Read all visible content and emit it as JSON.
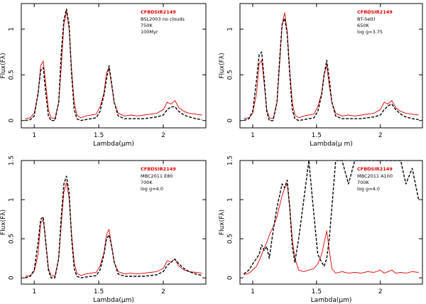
{
  "chart_data": [
    {
      "type": "line",
      "xlabel": "Lambda(μm)",
      "ylabel": "Flux(Fλ)",
      "xlim": [
        0.9,
        2.33
      ],
      "ylim": [
        -0.08,
        1.28
      ],
      "xticks": [
        1,
        1.5,
        2
      ],
      "xtick_labels": [
        "1",
        "1.5",
        "2"
      ],
      "yticks": [
        0,
        0.5,
        1
      ],
      "ytick_labels": [
        "0",
        "0.5",
        "1"
      ],
      "annotation_title": "CFBDSIR2149",
      "annotation_lines": [
        "BSL2003 no clouds",
        "750K",
        "100Myr"
      ],
      "series": [
        {
          "name": "CFBDSIR2149",
          "style": "solid",
          "color": "#e00000",
          "x": [
            0.93,
            0.97,
            1.0,
            1.03,
            1.05,
            1.07,
            1.09,
            1.11,
            1.13,
            1.16,
            1.19,
            1.21,
            1.23,
            1.25,
            1.27,
            1.29,
            1.31,
            1.33,
            1.36,
            1.4,
            1.44,
            1.48,
            1.51,
            1.54,
            1.56,
            1.58,
            1.6,
            1.62,
            1.65,
            1.7,
            1.75,
            1.8,
            1.85,
            1.9,
            1.95,
            2.0,
            2.03,
            2.06,
            2.09,
            2.12,
            2.16,
            2.2,
            2.25,
            2.3
          ],
          "y": [
            0.02,
            0.03,
            0.08,
            0.28,
            0.6,
            0.65,
            0.4,
            0.12,
            0.03,
            0.02,
            0.2,
            0.6,
            1.05,
            1.2,
            1.0,
            0.55,
            0.2,
            0.06,
            0.03,
            0.05,
            0.06,
            0.07,
            0.15,
            0.3,
            0.52,
            0.58,
            0.38,
            0.2,
            0.08,
            0.05,
            0.06,
            0.05,
            0.06,
            0.07,
            0.08,
            0.12,
            0.2,
            0.18,
            0.22,
            0.14,
            0.1,
            0.08,
            0.07,
            0.06
          ]
        },
        {
          "name": "BSL2003 no clouds model",
          "style": "dashed",
          "color": "#000000",
          "x": [
            0.93,
            0.97,
            1.0,
            1.03,
            1.05,
            1.07,
            1.09,
            1.11,
            1.13,
            1.16,
            1.19,
            1.21,
            1.23,
            1.25,
            1.27,
            1.29,
            1.31,
            1.33,
            1.36,
            1.4,
            1.44,
            1.48,
            1.51,
            1.54,
            1.56,
            1.58,
            1.6,
            1.62,
            1.65,
            1.7,
            1.75,
            1.8,
            1.85,
            1.9,
            1.95,
            2.0,
            2.03,
            2.06,
            2.09,
            2.12,
            2.16,
            2.2,
            2.25,
            2.3
          ],
          "y": [
            0.0,
            0.01,
            0.05,
            0.3,
            0.55,
            0.58,
            0.3,
            0.05,
            0.0,
            0.0,
            0.2,
            0.75,
            1.1,
            1.22,
            1.05,
            0.5,
            0.12,
            0.02,
            0.0,
            0.01,
            0.02,
            0.03,
            0.1,
            0.28,
            0.45,
            0.6,
            0.4,
            0.2,
            0.05,
            0.02,
            0.02,
            0.02,
            0.02,
            0.03,
            0.04,
            0.06,
            0.12,
            0.15,
            0.15,
            0.1,
            0.06,
            0.04,
            0.02,
            0.01
          ]
        }
      ]
    },
    {
      "type": "line",
      "xlabel": "Lambda(μ m)",
      "ylabel": "Flux(Fλ)",
      "xlim": [
        0.9,
        2.33
      ],
      "ylim": [
        -0.08,
        1.28
      ],
      "xticks": [
        1,
        1.5,
        2
      ],
      "xtick_labels": [
        "1",
        "1.5",
        "2"
      ],
      "yticks": [
        0,
        0.5,
        1
      ],
      "ytick_labels": [
        "0",
        "0.5",
        "1"
      ],
      "annotation_title": "CFBDSIR2149",
      "annotation_lines": [
        "BT-Settl",
        "650K",
        "log g=3.75"
      ],
      "series": [
        {
          "name": "CFBDSIR2149",
          "style": "solid",
          "color": "#e00000",
          "x": [
            0.93,
            0.97,
            1.0,
            1.03,
            1.05,
            1.07,
            1.09,
            1.11,
            1.13,
            1.16,
            1.19,
            1.21,
            1.23,
            1.25,
            1.27,
            1.29,
            1.31,
            1.33,
            1.36,
            1.4,
            1.44,
            1.48,
            1.51,
            1.54,
            1.56,
            1.58,
            1.6,
            1.62,
            1.65,
            1.7,
            1.75,
            1.8,
            1.85,
            1.9,
            1.95,
            2.0,
            2.03,
            2.06,
            2.09,
            2.12,
            2.16,
            2.2,
            2.25,
            2.3
          ],
          "y": [
            0.02,
            0.03,
            0.08,
            0.3,
            0.62,
            0.66,
            0.4,
            0.12,
            0.03,
            0.02,
            0.2,
            0.6,
            1.05,
            1.18,
            0.98,
            0.55,
            0.2,
            0.06,
            0.03,
            0.05,
            0.06,
            0.07,
            0.15,
            0.3,
            0.52,
            0.6,
            0.38,
            0.2,
            0.08,
            0.05,
            0.06,
            0.05,
            0.06,
            0.07,
            0.08,
            0.12,
            0.2,
            0.18,
            0.22,
            0.14,
            0.1,
            0.08,
            0.07,
            0.06
          ]
        },
        {
          "name": "BT-Settl model",
          "style": "dashed",
          "color": "#000000",
          "x": [
            0.93,
            0.97,
            1.0,
            1.03,
            1.05,
            1.07,
            1.09,
            1.11,
            1.13,
            1.16,
            1.19,
            1.21,
            1.23,
            1.25,
            1.27,
            1.29,
            1.31,
            1.33,
            1.36,
            1.4,
            1.44,
            1.48,
            1.51,
            1.54,
            1.56,
            1.58,
            1.6,
            1.62,
            1.65,
            1.7,
            1.75,
            1.8,
            1.85,
            1.9,
            1.95,
            2.0,
            2.03,
            2.06,
            2.09,
            2.12,
            2.16,
            2.2,
            2.25,
            2.3
          ],
          "y": [
            0.0,
            0.02,
            0.1,
            0.45,
            0.72,
            0.75,
            0.45,
            0.1,
            0.0,
            0.0,
            0.2,
            0.65,
            1.05,
            1.12,
            0.95,
            0.5,
            0.12,
            0.02,
            0.0,
            0.01,
            0.02,
            0.03,
            0.1,
            0.28,
            0.5,
            0.66,
            0.45,
            0.2,
            0.05,
            0.02,
            0.02,
            0.02,
            0.02,
            0.03,
            0.04,
            0.06,
            0.12,
            0.16,
            0.18,
            0.12,
            0.07,
            0.04,
            0.02,
            0.01
          ]
        }
      ]
    },
    {
      "type": "line",
      "xlabel": "Lambda(μm)",
      "ylabel": "Flux(Fλ)",
      "xlim": [
        0.9,
        2.33
      ],
      "ylim": [
        -0.08,
        1.5
      ],
      "xticks": [
        1,
        1.5,
        2
      ],
      "xtick_labels": [
        "1",
        "1.5",
        "2"
      ],
      "yticks": [
        0,
        0.5,
        1,
        1.5
      ],
      "ytick_labels": [
        "0",
        "0.5",
        "1",
        "1.5"
      ],
      "annotation_title": "CFBDSIR2149",
      "annotation_lines": [
        "MBC2011 E80",
        "700K",
        "log g=4.0"
      ],
      "series": [
        {
          "name": "CFBDSIR2149",
          "style": "solid",
          "color": "#e00000",
          "x": [
            0.93,
            0.97,
            1.0,
            1.03,
            1.05,
            1.07,
            1.09,
            1.11,
            1.13,
            1.16,
            1.19,
            1.21,
            1.23,
            1.25,
            1.27,
            1.29,
            1.31,
            1.33,
            1.36,
            1.4,
            1.44,
            1.48,
            1.51,
            1.54,
            1.56,
            1.58,
            1.6,
            1.62,
            1.65,
            1.7,
            1.75,
            1.8,
            1.85,
            1.9,
            1.95,
            2.0,
            2.03,
            2.06,
            2.09,
            2.12,
            2.16,
            2.2,
            2.25,
            2.3
          ],
          "y": [
            0.02,
            0.03,
            0.08,
            0.3,
            0.7,
            0.75,
            0.45,
            0.12,
            0.03,
            0.02,
            0.25,
            0.7,
            1.1,
            1.22,
            1.02,
            0.55,
            0.2,
            0.06,
            0.03,
            0.05,
            0.06,
            0.07,
            0.15,
            0.32,
            0.55,
            0.62,
            0.4,
            0.2,
            0.08,
            0.05,
            0.06,
            0.05,
            0.06,
            0.07,
            0.08,
            0.12,
            0.22,
            0.2,
            0.24,
            0.15,
            0.1,
            0.08,
            0.07,
            0.06
          ]
        },
        {
          "name": "MBC2011 E80 model",
          "style": "dashed",
          "color": "#000000",
          "x": [
            0.93,
            0.97,
            1.0,
            1.03,
            1.05,
            1.07,
            1.09,
            1.11,
            1.13,
            1.16,
            1.19,
            1.21,
            1.23,
            1.25,
            1.27,
            1.29,
            1.31,
            1.33,
            1.36,
            1.4,
            1.44,
            1.48,
            1.51,
            1.54,
            1.56,
            1.58,
            1.6,
            1.62,
            1.65,
            1.7,
            1.75,
            1.8,
            1.85,
            1.9,
            1.95,
            2.0,
            2.03,
            2.06,
            2.09,
            2.12,
            2.16,
            2.2,
            2.25,
            2.3
          ],
          "y": [
            0.0,
            0.02,
            0.1,
            0.45,
            0.75,
            0.78,
            0.45,
            0.1,
            0.0,
            0.0,
            0.25,
            0.8,
            1.2,
            1.3,
            1.1,
            0.5,
            0.12,
            0.02,
            0.0,
            0.01,
            0.02,
            0.03,
            0.1,
            0.3,
            0.5,
            0.55,
            0.4,
            0.2,
            0.05,
            0.02,
            0.02,
            0.02,
            0.02,
            0.03,
            0.04,
            0.08,
            0.16,
            0.2,
            0.24,
            0.18,
            0.12,
            0.08,
            0.05,
            0.03
          ]
        }
      ]
    },
    {
      "type": "line",
      "xlabel": "Lambda(μm)",
      "ylabel": "Flux(Fλ)",
      "xlim": [
        0.9,
        2.33
      ],
      "ylim": [
        -0.08,
        1.5
      ],
      "xticks": [
        1,
        1.5,
        2
      ],
      "xtick_labels": [
        "1",
        "1.5",
        "2"
      ],
      "yticks": [
        0,
        0.5,
        1,
        1.5
      ],
      "ytick_labels": [
        "0",
        "0.5",
        "1",
        "1.5"
      ],
      "annotation_title": "CFBDSIR2149",
      "annotation_lines": [
        "MBC2011 A100",
        "700K",
        "log g=4.0"
      ],
      "series": [
        {
          "name": "CFBDSIR2149",
          "style": "solid",
          "color": "#e00000",
          "x": [
            0.93,
            0.97,
            1.0,
            1.03,
            1.05,
            1.07,
            1.09,
            1.11,
            1.13,
            1.16,
            1.19,
            1.21,
            1.23,
            1.25,
            1.27,
            1.29,
            1.31,
            1.33,
            1.36,
            1.4,
            1.44,
            1.48,
            1.51,
            1.54,
            1.56,
            1.58,
            1.6,
            1.62,
            1.65,
            1.7,
            1.75,
            1.8,
            1.85,
            1.9,
            1.95,
            2.0,
            2.03,
            2.06,
            2.09,
            2.12,
            2.16,
            2.2,
            2.25,
            2.3
          ],
          "y": [
            0.04,
            0.06,
            0.1,
            0.15,
            0.22,
            0.3,
            0.38,
            0.45,
            0.55,
            0.65,
            0.78,
            0.92,
            1.05,
            1.15,
            1.2,
            0.9,
            0.5,
            0.25,
            0.1,
            0.08,
            0.1,
            0.12,
            0.18,
            0.3,
            0.45,
            0.6,
            0.35,
            0.12,
            0.06,
            0.08,
            0.06,
            0.07,
            0.06,
            0.08,
            0.07,
            0.1,
            0.06,
            0.08,
            0.1,
            0.06,
            0.07,
            0.06,
            0.08,
            0.07
          ]
        },
        {
          "name": "MBC2011 A100 model",
          "style": "dashed",
          "color": "#000000",
          "x": [
            0.93,
            0.97,
            1.0,
            1.03,
            1.05,
            1.07,
            1.09,
            1.11,
            1.13,
            1.16,
            1.19,
            1.21,
            1.23,
            1.25,
            1.27,
            1.29,
            1.31,
            1.33,
            1.36,
            1.4,
            1.44,
            1.48,
            1.51,
            1.54,
            1.56,
            1.58,
            1.6,
            1.62,
            1.65,
            1.7,
            1.75,
            1.8,
            1.85,
            1.9,
            1.95,
            2.0,
            2.03,
            2.06,
            2.09,
            2.12,
            2.16,
            2.2,
            2.25,
            2.3
          ],
          "y": [
            0.05,
            0.1,
            0.18,
            0.25,
            0.3,
            0.42,
            0.35,
            0.4,
            0.25,
            0.6,
            0.9,
            1.05,
            1.2,
            1.15,
            1.25,
            0.9,
            0.4,
            0.2,
            0.5,
            1.0,
            1.5,
            0.8,
            0.3,
            0.2,
            0.15,
            0.25,
            0.5,
            0.9,
            1.5,
            1.5,
            1.2,
            1.5,
            1.5,
            1.5,
            1.5,
            1.5,
            1.5,
            1.5,
            1.5,
            1.5,
            1.5,
            1.2,
            1.4,
            1.0
          ]
        }
      ]
    }
  ]
}
